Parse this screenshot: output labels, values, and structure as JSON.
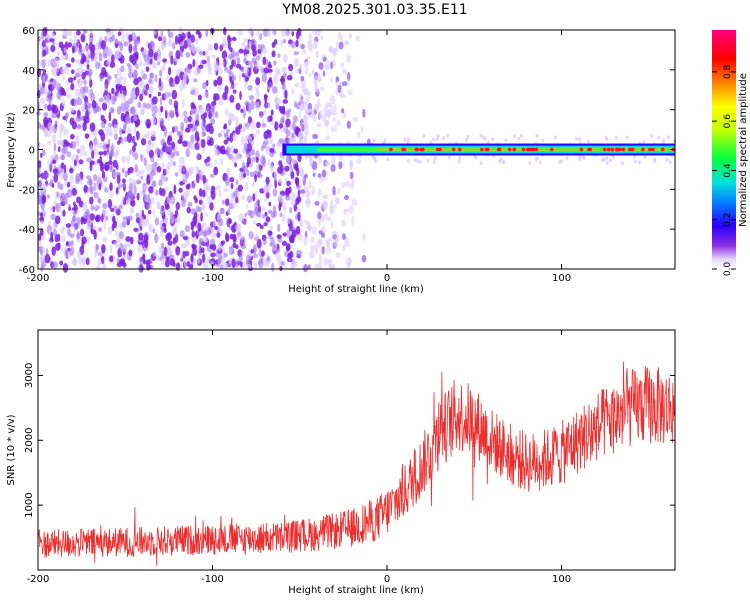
{
  "title": "YM08.2025.301.03.35.E11",
  "colors": {
    "snr_line": "#ee2e2e",
    "scatter_noise": "#8a2be2",
    "axis": "#000000"
  },
  "chart_data": [
    {
      "type": "heatmap",
      "title": "YM08.2025.301.03.35.E11",
      "xlabel": "Height of straight line (km)",
      "ylabel": "Frequency (Hz)",
      "xlim": [
        -200,
        165
      ],
      "ylim": [
        -60,
        60
      ],
      "xticks": [
        -200,
        -100,
        0,
        100
      ],
      "yticks": [
        60,
        40,
        20,
        0,
        -20,
        -40,
        -60
      ],
      "ytick_labels": [
        "60",
        "40",
        "20",
        "0",
        "-20",
        "-40",
        "-60"
      ],
      "noise_region_x": [
        -200,
        -10
      ],
      "dense_noise_until_x": -50,
      "signal_band": {
        "x_start": -60,
        "x_end": 165,
        "center_freq": 0,
        "half_width": 3
      },
      "colorbar": {
        "label": "Normalized spectral amplitude",
        "range": [
          0.0,
          0.97
        ],
        "ticks": [
          0.0,
          0.2,
          0.4,
          0.6,
          0.8
        ],
        "tick_labels": [
          "0.0",
          "0.2",
          "0.4",
          "0.6",
          "0.8"
        ]
      }
    },
    {
      "type": "line",
      "xlabel": "Height of straight line (km)",
      "ylabel": "SNR (10 * v/v)",
      "xlim": [
        -200,
        165
      ],
      "ylim": [
        0,
        3700
      ],
      "xticks": [
        -200,
        -100,
        0,
        100
      ],
      "yticks": [
        1000,
        2000,
        3000
      ],
      "envelope": {
        "x": [
          -200,
          -150,
          -100,
          -60,
          -40,
          -20,
          -5,
          0,
          10,
          20,
          30,
          40,
          50,
          60,
          70,
          80,
          90,
          100,
          110,
          120,
          130,
          140,
          150,
          160,
          165
        ],
        "mean": [
          400,
          430,
          470,
          500,
          560,
          650,
          800,
          900,
          1200,
          1600,
          2100,
          2400,
          2300,
          2000,
          1800,
          1650,
          1700,
          1800,
          2000,
          2200,
          2350,
          2500,
          2550,
          2500,
          2500
        ],
        "spread": [
          220,
          230,
          240,
          250,
          270,
          300,
          350,
          380,
          420,
          480,
          550,
          600,
          550,
          500,
          480,
          470,
          480,
          500,
          520,
          550,
          580,
          600,
          620,
          600,
          600
        ]
      },
      "samples": 1460
    }
  ]
}
